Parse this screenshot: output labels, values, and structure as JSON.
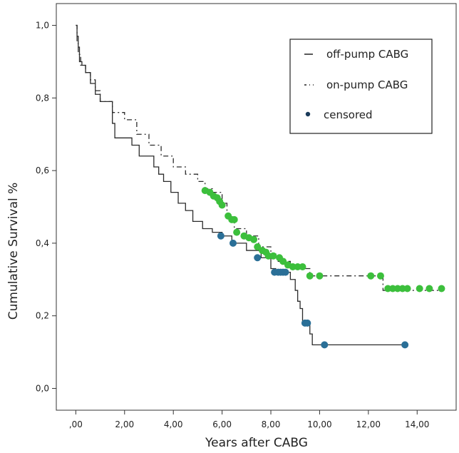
{
  "chart_data": {
    "type": "line",
    "subtype": "kaplan-meier-step",
    "xlabel": "Years after CABG",
    "ylabel": "Cumulative Survival %",
    "xlim": [
      -0.8,
      15.6
    ],
    "ylim": [
      -0.06,
      1.06
    ],
    "x_ticks": [
      0,
      2,
      4,
      6,
      8,
      10,
      12,
      14
    ],
    "x_tick_labels": [
      ",00",
      "2,00",
      "4,00",
      "6,00",
      "8,00",
      "10,00",
      "12,00",
      "14,00"
    ],
    "y_ticks": [
      0,
      0.2,
      0.4,
      0.6,
      0.8,
      1.0
    ],
    "y_tick_labels": [
      "0,0",
      "0,2",
      "0,4",
      "0,6",
      "0,8",
      "1,0"
    ],
    "grid": false,
    "legend_position": "top-right",
    "legend": [
      {
        "label": "off-pump CABG",
        "symbol": "solid-line"
      },
      {
        "label": "on-pump CABG",
        "symbol": "dash-dot-line"
      },
      {
        "label": "censored",
        "symbol": "dot"
      }
    ],
    "series": [
      {
        "name": "off-pump CABG",
        "style": "solid",
        "color": "#2b2b2b",
        "censor_color": "#2a6f97",
        "steps": [
          [
            0,
            1.0
          ],
          [
            0.05,
            0.97
          ],
          [
            0.1,
            0.94
          ],
          [
            0.15,
            0.9
          ],
          [
            0.25,
            0.89
          ],
          [
            0.4,
            0.87
          ],
          [
            0.6,
            0.84
          ],
          [
            0.8,
            0.81
          ],
          [
            1.0,
            0.79
          ],
          [
            1.5,
            0.73
          ],
          [
            1.6,
            0.69
          ],
          [
            2.3,
            0.67
          ],
          [
            2.6,
            0.64
          ],
          [
            3.2,
            0.61
          ],
          [
            3.4,
            0.59
          ],
          [
            3.6,
            0.57
          ],
          [
            3.9,
            0.54
          ],
          [
            4.2,
            0.51
          ],
          [
            4.5,
            0.49
          ],
          [
            4.8,
            0.46
          ],
          [
            5.2,
            0.44
          ],
          [
            5.6,
            0.43
          ],
          [
            6.0,
            0.42
          ],
          [
            6.4,
            0.4
          ],
          [
            7.0,
            0.38
          ],
          [
            7.6,
            0.36
          ],
          [
            8.0,
            0.33
          ],
          [
            8.2,
            0.32
          ],
          [
            8.8,
            0.3
          ],
          [
            9.0,
            0.27
          ],
          [
            9.1,
            0.24
          ],
          [
            9.2,
            0.22
          ],
          [
            9.3,
            0.18
          ],
          [
            9.6,
            0.15
          ],
          [
            9.7,
            0.12
          ],
          [
            13.4,
            0.12
          ]
        ],
        "censored": [
          [
            5.95,
            0.42
          ],
          [
            6.45,
            0.4
          ],
          [
            7.45,
            0.36
          ],
          [
            8.15,
            0.32
          ],
          [
            8.3,
            0.32
          ],
          [
            8.4,
            0.32
          ],
          [
            8.5,
            0.32
          ],
          [
            8.6,
            0.32
          ],
          [
            9.4,
            0.18
          ],
          [
            9.5,
            0.18
          ],
          [
            10.2,
            0.12
          ],
          [
            13.5,
            0.12
          ]
        ]
      },
      {
        "name": "on-pump CABG",
        "style": "dash-dot",
        "color": "#2b2b2b",
        "censor_color": "#3cbf3c",
        "steps": [
          [
            0,
            1.0
          ],
          [
            0.05,
            0.95
          ],
          [
            0.1,
            0.92
          ],
          [
            0.2,
            0.89
          ],
          [
            0.4,
            0.87
          ],
          [
            0.6,
            0.85
          ],
          [
            0.8,
            0.82
          ],
          [
            1.0,
            0.79
          ],
          [
            1.5,
            0.76
          ],
          [
            2.0,
            0.74
          ],
          [
            2.5,
            0.7
          ],
          [
            3.0,
            0.67
          ],
          [
            3.5,
            0.64
          ],
          [
            4.0,
            0.61
          ],
          [
            4.5,
            0.59
          ],
          [
            5.0,
            0.57
          ],
          [
            5.3,
            0.55
          ],
          [
            5.6,
            0.54
          ],
          [
            6.0,
            0.51
          ],
          [
            6.2,
            0.47
          ],
          [
            6.5,
            0.44
          ],
          [
            7.0,
            0.42
          ],
          [
            7.5,
            0.39
          ],
          [
            8.0,
            0.37
          ],
          [
            8.3,
            0.35
          ],
          [
            8.8,
            0.33
          ],
          [
            9.6,
            0.31
          ],
          [
            12.5,
            0.31
          ],
          [
            12.6,
            0.27
          ],
          [
            15.0,
            0.27
          ]
        ],
        "censored": [
          [
            5.3,
            0.545
          ],
          [
            5.5,
            0.54
          ],
          [
            5.65,
            0.53
          ],
          [
            5.8,
            0.525
          ],
          [
            5.9,
            0.515
          ],
          [
            6.0,
            0.505
          ],
          [
            6.25,
            0.475
          ],
          [
            6.4,
            0.465
          ],
          [
            6.5,
            0.465
          ],
          [
            6.6,
            0.43
          ],
          [
            6.9,
            0.42
          ],
          [
            7.1,
            0.415
          ],
          [
            7.3,
            0.41
          ],
          [
            7.45,
            0.39
          ],
          [
            7.65,
            0.38
          ],
          [
            7.8,
            0.375
          ],
          [
            7.9,
            0.365
          ],
          [
            8.1,
            0.365
          ],
          [
            8.35,
            0.36
          ],
          [
            8.5,
            0.35
          ],
          [
            8.7,
            0.34
          ],
          [
            8.9,
            0.335
          ],
          [
            9.1,
            0.335
          ],
          [
            9.3,
            0.335
          ],
          [
            9.6,
            0.31
          ],
          [
            10.0,
            0.31
          ],
          [
            12.1,
            0.31
          ],
          [
            12.5,
            0.31
          ],
          [
            12.8,
            0.275
          ],
          [
            13.0,
            0.275
          ],
          [
            13.2,
            0.275
          ],
          [
            13.4,
            0.275
          ],
          [
            13.6,
            0.275
          ],
          [
            14.1,
            0.275
          ],
          [
            14.5,
            0.275
          ],
          [
            15.0,
            0.275
          ]
        ]
      }
    ]
  }
}
